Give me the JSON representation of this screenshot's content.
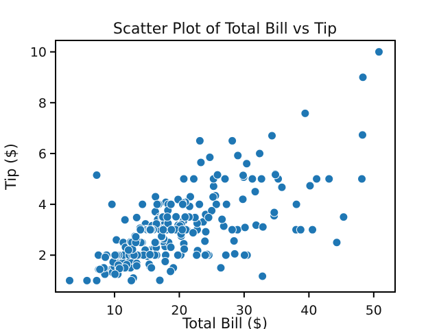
{
  "chart_data": {
    "type": "scatter",
    "title": "Scatter Plot of Total Bill vs Tip",
    "xlabel": "Total Bill ($)",
    "ylabel": "Tip ($)",
    "xlim": [
      0.9,
      53.3
    ],
    "ylim": [
      0.55,
      10.45
    ],
    "xticks": [
      10,
      20,
      30,
      40,
      50
    ],
    "yticks": [
      2,
      4,
      6,
      8,
      10
    ],
    "grid": false,
    "legend": "none",
    "point_color": "#1f77b4",
    "points": [
      [
        16.99,
        1.01
      ],
      [
        10.34,
        1.66
      ],
      [
        21.01,
        3.5
      ],
      [
        23.68,
        3.31
      ],
      [
        24.59,
        3.61
      ],
      [
        25.29,
        4.71
      ],
      [
        8.77,
        2.0
      ],
      [
        26.88,
        3.12
      ],
      [
        15.04,
        1.96
      ],
      [
        14.78,
        3.23
      ],
      [
        10.27,
        1.71
      ],
      [
        35.26,
        5.0
      ],
      [
        15.42,
        1.57
      ],
      [
        18.43,
        3.0
      ],
      [
        14.83,
        3.02
      ],
      [
        21.58,
        3.92
      ],
      [
        10.33,
        1.67
      ],
      [
        16.29,
        3.71
      ],
      [
        16.97,
        3.5
      ],
      [
        20.65,
        3.35
      ],
      [
        17.92,
        4.08
      ],
      [
        20.29,
        2.75
      ],
      [
        15.77,
        2.23
      ],
      [
        39.42,
        7.58
      ],
      [
        19.82,
        3.18
      ],
      [
        17.81,
        2.34
      ],
      [
        13.37,
        2.0
      ],
      [
        12.69,
        2.0
      ],
      [
        21.7,
        4.3
      ],
      [
        19.65,
        3.0
      ],
      [
        9.55,
        1.45
      ],
      [
        18.35,
        2.5
      ],
      [
        15.06,
        3.0
      ],
      [
        20.69,
        2.45
      ],
      [
        17.78,
        3.27
      ],
      [
        24.06,
        3.6
      ],
      [
        16.31,
        2.0
      ],
      [
        16.93,
        3.07
      ],
      [
        18.69,
        2.31
      ],
      [
        31.27,
        5.0
      ],
      [
        16.04,
        2.24
      ],
      [
        17.46,
        2.54
      ],
      [
        13.94,
        3.06
      ],
      [
        9.68,
        1.32
      ],
      [
        30.4,
        5.6
      ],
      [
        18.29,
        3.0
      ],
      [
        22.23,
        5.0
      ],
      [
        32.4,
        6.0
      ],
      [
        28.55,
        2.05
      ],
      [
        18.04,
        3.0
      ],
      [
        12.54,
        2.5
      ],
      [
        10.29,
        2.6
      ],
      [
        34.81,
        5.2
      ],
      [
        9.94,
        1.56
      ],
      [
        25.56,
        4.34
      ],
      [
        19.49,
        3.51
      ],
      [
        38.01,
        3.0
      ],
      [
        26.41,
        1.5
      ],
      [
        11.24,
        1.76
      ],
      [
        48.27,
        6.73
      ],
      [
        20.29,
        3.21
      ],
      [
        13.81,
        2.0
      ],
      [
        11.02,
        1.98
      ],
      [
        18.29,
        3.76
      ],
      [
        17.59,
        2.64
      ],
      [
        20.08,
        3.15
      ],
      [
        16.45,
        2.47
      ],
      [
        3.07,
        1.0
      ],
      [
        20.23,
        2.01
      ],
      [
        15.01,
        2.09
      ],
      [
        12.02,
        1.97
      ],
      [
        17.07,
        3.0
      ],
      [
        26.86,
        3.14
      ],
      [
        25.28,
        5.0
      ],
      [
        14.73,
        2.2
      ],
      [
        10.51,
        1.25
      ],
      [
        17.92,
        3.08
      ],
      [
        27.2,
        4.0
      ],
      [
        22.76,
        3.0
      ],
      [
        17.29,
        2.71
      ],
      [
        19.44,
        3.0
      ],
      [
        16.66,
        3.4
      ],
      [
        10.07,
        1.83
      ],
      [
        32.68,
        5.0
      ],
      [
        15.98,
        2.03
      ],
      [
        34.83,
        5.17
      ],
      [
        13.03,
        2.0
      ],
      [
        18.28,
        4.0
      ],
      [
        24.71,
        5.85
      ],
      [
        21.16,
        3.0
      ],
      [
        28.97,
        3.0
      ],
      [
        22.49,
        3.5
      ],
      [
        5.75,
        1.0
      ],
      [
        16.32,
        4.3
      ],
      [
        22.75,
        3.25
      ],
      [
        40.17,
        4.73
      ],
      [
        27.28,
        4.0
      ],
      [
        12.03,
        1.5
      ],
      [
        21.01,
        3.0
      ],
      [
        12.46,
        1.5
      ],
      [
        11.35,
        2.5
      ],
      [
        15.38,
        3.0
      ],
      [
        44.3,
        2.5
      ],
      [
        22.42,
        3.48
      ],
      [
        20.92,
        4.08
      ],
      [
        15.36,
        1.64
      ],
      [
        20.49,
        4.06
      ],
      [
        25.21,
        4.29
      ],
      [
        18.24,
        3.76
      ],
      [
        14.31,
        4.0
      ],
      [
        14.0,
        3.0
      ],
      [
        7.25,
        1.0
      ],
      [
        38.07,
        4.0
      ],
      [
        23.95,
        2.55
      ],
      [
        25.71,
        4.0
      ],
      [
        17.31,
        3.5
      ],
      [
        29.93,
        5.07
      ],
      [
        10.65,
        1.5
      ],
      [
        12.43,
        1.8
      ],
      [
        24.08,
        2.92
      ],
      [
        11.69,
        2.31
      ],
      [
        13.42,
        1.68
      ],
      [
        14.26,
        2.5
      ],
      [
        15.95,
        2.0
      ],
      [
        12.48,
        2.52
      ],
      [
        29.8,
        4.2
      ],
      [
        8.52,
        1.48
      ],
      [
        14.52,
        2.0
      ],
      [
        11.38,
        2.0
      ],
      [
        22.82,
        2.18
      ],
      [
        19.08,
        1.5
      ],
      [
        20.27,
        2.83
      ],
      [
        11.17,
        1.5
      ],
      [
        12.26,
        2.0
      ],
      [
        18.26,
        3.25
      ],
      [
        8.51,
        1.25
      ],
      [
        10.33,
        2.0
      ],
      [
        14.15,
        2.0
      ],
      [
        16.0,
        2.0
      ],
      [
        13.16,
        2.75
      ],
      [
        17.47,
        3.5
      ],
      [
        34.3,
        6.7
      ],
      [
        41.19,
        5.0
      ],
      [
        27.05,
        5.0
      ],
      [
        16.43,
        2.3
      ],
      [
        8.35,
        1.5
      ],
      [
        18.64,
        1.36
      ],
      [
        11.87,
        1.63
      ],
      [
        9.78,
        1.73
      ],
      [
        7.51,
        2.0
      ],
      [
        14.07,
        2.5
      ],
      [
        13.13,
        2.0
      ],
      [
        17.26,
        2.74
      ],
      [
        24.55,
        2.0
      ],
      [
        19.77,
        2.0
      ],
      [
        29.85,
        5.14
      ],
      [
        48.17,
        5.0
      ],
      [
        25.0,
        3.75
      ],
      [
        13.39,
        2.61
      ],
      [
        16.49,
        2.0
      ],
      [
        21.5,
        3.5
      ],
      [
        12.66,
        2.5
      ],
      [
        16.21,
        2.0
      ],
      [
        13.81,
        2.0
      ],
      [
        17.51,
        3.0
      ],
      [
        24.52,
        3.48
      ],
      [
        20.76,
        2.24
      ],
      [
        31.71,
        4.5
      ],
      [
        10.59,
        1.61
      ],
      [
        10.63,
        2.0
      ],
      [
        50.81,
        10.0
      ],
      [
        15.81,
        3.16
      ],
      [
        7.25,
        5.15
      ],
      [
        31.85,
        3.18
      ],
      [
        16.82,
        4.0
      ],
      [
        32.9,
        3.11
      ],
      [
        17.89,
        2.0
      ],
      [
        14.48,
        2.0
      ],
      [
        9.6,
        4.0
      ],
      [
        34.63,
        3.55
      ],
      [
        34.65,
        3.68
      ],
      [
        23.33,
        5.65
      ],
      [
        45.35,
        3.5
      ],
      [
        23.17,
        6.5
      ],
      [
        40.55,
        3.0
      ],
      [
        20.69,
        5.0
      ],
      [
        20.9,
        3.5
      ],
      [
        30.46,
        2.0
      ],
      [
        18.15,
        3.5
      ],
      [
        23.1,
        4.0
      ],
      [
        15.69,
        1.5
      ],
      [
        19.81,
        4.19
      ],
      [
        28.44,
        2.56
      ],
      [
        15.48,
        2.02
      ],
      [
        16.58,
        4.0
      ],
      [
        7.56,
        1.44
      ],
      [
        10.34,
        2.0
      ],
      [
        43.11,
        5.0
      ],
      [
        13.0,
        2.0
      ],
      [
        13.51,
        2.0
      ],
      [
        18.71,
        4.0
      ],
      [
        12.74,
        2.01
      ],
      [
        13.0,
        2.0
      ],
      [
        16.4,
        2.5
      ],
      [
        20.53,
        4.0
      ],
      [
        16.47,
        3.23
      ],
      [
        26.59,
        3.41
      ],
      [
        38.73,
        3.0
      ],
      [
        24.27,
        2.03
      ],
      [
        12.76,
        2.23
      ],
      [
        30.06,
        2.0
      ],
      [
        25.89,
        5.16
      ],
      [
        48.33,
        9.0
      ],
      [
        13.27,
        2.5
      ],
      [
        28.17,
        6.5
      ],
      [
        12.9,
        1.1
      ],
      [
        28.15,
        3.0
      ],
      [
        11.59,
        1.5
      ],
      [
        7.74,
        1.44
      ],
      [
        30.14,
        3.09
      ],
      [
        12.16,
        2.2
      ],
      [
        13.42,
        3.48
      ],
      [
        8.58,
        1.92
      ],
      [
        15.98,
        3.0
      ],
      [
        13.42,
        1.58
      ],
      [
        16.27,
        2.5
      ],
      [
        10.09,
        2.0
      ],
      [
        20.45,
        3.0
      ],
      [
        13.28,
        2.72
      ],
      [
        22.12,
        2.88
      ],
      [
        24.01,
        2.0
      ],
      [
        15.69,
        3.0
      ],
      [
        11.61,
        3.39
      ],
      [
        10.77,
        1.47
      ],
      [
        15.53,
        3.0
      ],
      [
        10.07,
        1.25
      ],
      [
        12.6,
        1.0
      ],
      [
        32.83,
        1.17
      ],
      [
        35.83,
        4.67
      ],
      [
        29.03,
        5.92
      ],
      [
        27.18,
        2.0
      ],
      [
        22.67,
        2.0
      ],
      [
        17.82,
        1.75
      ],
      [
        18.78,
        3.0
      ]
    ]
  }
}
